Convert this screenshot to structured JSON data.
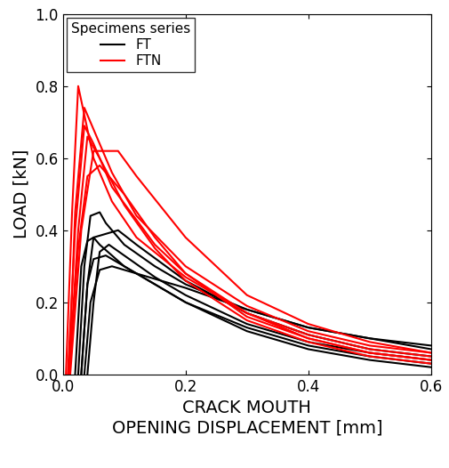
{
  "chart_data": {
    "type": "line",
    "xlabel": "CRACK MOUTH\nOPENING DISPLACEMENT [mm]",
    "ylabel": "LOAD [kN]",
    "xlim": [
      0.0,
      0.6
    ],
    "xticks": [
      0.0,
      0.2,
      0.4,
      0.6
    ],
    "ylim": [
      0.0,
      1.0
    ],
    "yticks": [
      0.0,
      0.2,
      0.4,
      0.6,
      0.8,
      1.0
    ],
    "legend": "upper left",
    "legend_title": "Specimens series",
    "series": [
      {
        "name": "FT",
        "color": "#000000",
        "curves": [
          {
            "x": [
              0.025,
              0.035,
              0.045,
              0.06,
              0.07,
              0.1,
              0.15,
              0.2,
              0.3,
              0.4,
              0.5,
              0.6
            ],
            "values": [
              0.0,
              0.3,
              0.44,
              0.45,
              0.42,
              0.36,
              0.3,
              0.25,
              0.18,
              0.13,
              0.1,
              0.08
            ]
          },
          {
            "x": [
              0.03,
              0.04,
              0.05,
              0.07,
              0.09,
              0.12,
              0.2,
              0.3,
              0.4,
              0.5,
              0.6
            ],
            "values": [
              0.0,
              0.25,
              0.38,
              0.39,
              0.4,
              0.36,
              0.26,
              0.17,
              0.11,
              0.07,
              0.05
            ]
          },
          {
            "x": [
              0.02,
              0.03,
              0.04,
              0.05,
              0.06,
              0.1,
              0.2,
              0.3,
              0.4,
              0.5,
              0.6
            ],
            "values": [
              0.0,
              0.3,
              0.37,
              0.38,
              0.36,
              0.3,
              0.2,
              0.13,
              0.08,
              0.05,
              0.03
            ]
          },
          {
            "x": [
              0.04,
              0.05,
              0.06,
              0.075,
              0.1,
              0.15,
              0.2,
              0.3,
              0.4,
              0.5,
              0.6
            ],
            "values": [
              0.0,
              0.2,
              0.34,
              0.36,
              0.33,
              0.27,
              0.22,
              0.14,
              0.09,
              0.06,
              0.04
            ]
          },
          {
            "x": [
              0.03,
              0.04,
              0.05,
              0.07,
              0.1,
              0.15,
              0.2,
              0.3,
              0.4,
              0.5,
              0.6
            ],
            "values": [
              0.0,
              0.25,
              0.32,
              0.33,
              0.3,
              0.25,
              0.2,
              0.12,
              0.07,
              0.04,
              0.02
            ]
          },
          {
            "x": [
              0.035,
              0.045,
              0.06,
              0.08,
              0.12,
              0.2,
              0.3,
              0.4,
              0.5,
              0.6
            ],
            "values": [
              0.0,
              0.2,
              0.29,
              0.3,
              0.28,
              0.24,
              0.18,
              0.13,
              0.1,
              0.07
            ]
          }
        ]
      },
      {
        "name": "FTN",
        "color": "#ff0000",
        "curves": [
          {
            "x": [
              0.005,
              0.015,
              0.025,
              0.035,
              0.05,
              0.08,
              0.12,
              0.2,
              0.3,
              0.4,
              0.5,
              0.6
            ],
            "values": [
              0.0,
              0.45,
              0.8,
              0.72,
              0.6,
              0.48,
              0.38,
              0.27,
              0.17,
              0.11,
              0.07,
              0.05
            ]
          },
          {
            "x": [
              0.01,
              0.02,
              0.035,
              0.05,
              0.08,
              0.12,
              0.2,
              0.3,
              0.4,
              0.5,
              0.6
            ],
            "values": [
              0.0,
              0.45,
              0.74,
              0.68,
              0.56,
              0.44,
              0.3,
              0.19,
              0.12,
              0.08,
              0.06
            ]
          },
          {
            "x": [
              0.008,
              0.02,
              0.035,
              0.05,
              0.08,
              0.15,
              0.2,
              0.3,
              0.4,
              0.5,
              0.6
            ],
            "values": [
              0.0,
              0.4,
              0.69,
              0.64,
              0.52,
              0.36,
              0.28,
              0.16,
              0.1,
              0.06,
              0.04
            ]
          },
          {
            "x": [
              0.01,
              0.025,
              0.04,
              0.06,
              0.1,
              0.15,
              0.2,
              0.3,
              0.4,
              0.5,
              0.6
            ],
            "values": [
              0.0,
              0.4,
              0.66,
              0.6,
              0.47,
              0.35,
              0.26,
              0.15,
              0.09,
              0.05,
              0.03
            ]
          },
          {
            "x": [
              0.012,
              0.03,
              0.05,
              0.07,
              0.09,
              0.12,
              0.2,
              0.3,
              0.4,
              0.5,
              0.6
            ],
            "values": [
              0.0,
              0.4,
              0.62,
              0.62,
              0.62,
              0.55,
              0.38,
              0.22,
              0.14,
              0.09,
              0.06
            ]
          },
          {
            "x": [
              0.01,
              0.025,
              0.04,
              0.06,
              0.1,
              0.15,
              0.2,
              0.3,
              0.4,
              0.5,
              0.6
            ],
            "values": [
              0.0,
              0.35,
              0.55,
              0.58,
              0.5,
              0.38,
              0.28,
              0.17,
              0.1,
              0.06,
              0.04
            ]
          }
        ]
      }
    ]
  }
}
